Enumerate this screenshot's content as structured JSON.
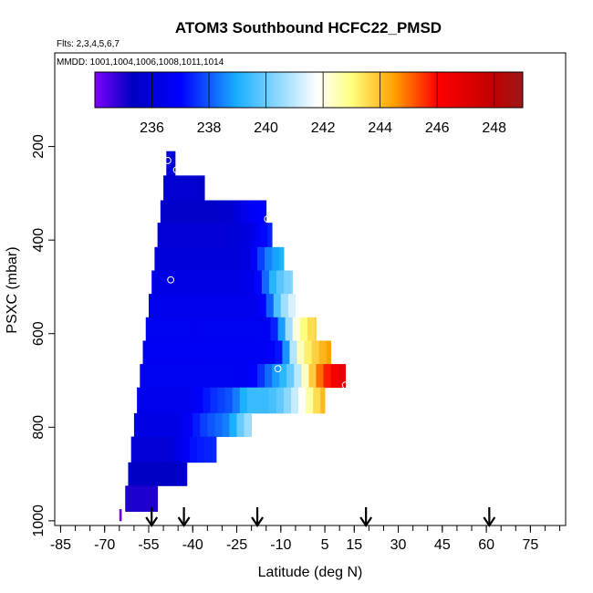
{
  "chart_data": {
    "type": "heatmap",
    "title": "ATOM3 Southbound HCFC22_PMSD",
    "flights_note": "Flts: 2,3,4,5,6,7",
    "dates_note": "MMDD: 1001,1004,1006,1008,1011,1014",
    "xlabel": "Latitude (deg N)",
    "ylabel": "PSXC (mbar)",
    "xlim": [
      -87,
      87
    ],
    "ylim": [
      1010,
      0
    ],
    "x_ticks": [
      -85,
      -70,
      -55,
      -40,
      -25,
      -10,
      5,
      15,
      30,
      45,
      60,
      75
    ],
    "x_minor_step": 5,
    "y_ticks": [
      200,
      400,
      600,
      800,
      1000
    ],
    "colorbar": {
      "min": 234,
      "max": 249,
      "ticks": [
        236,
        238,
        240,
        242,
        244,
        246,
        248
      ],
      "segment_edges": [
        236,
        238,
        240,
        242,
        244,
        246,
        248
      ],
      "colors": [
        "#7f00ff",
        "#0000c0",
        "#0000ff",
        "#1ab0ff",
        "#ffffff",
        "#ffff80",
        "#ffa000",
        "#ff0000",
        "#c00000",
        "#9c1a1a"
      ],
      "color_stops": [
        234,
        235.3,
        237,
        239,
        241.8,
        243,
        244.5,
        246,
        248,
        249
      ]
    },
    "profile_bands": [
      {
        "pmin": 210,
        "pmax": 262,
        "lat_min": -49,
        "lat_max": -46,
        "value": 235.6
      },
      {
        "pmin": 262,
        "pmax": 315,
        "lat_min": -50,
        "lat_max": -36,
        "value": 235.5
      },
      {
        "pmin": 315,
        "pmax": 363,
        "lat_min": -51,
        "lat_max": -15,
        "value": 235.6
      },
      {
        "pmin": 363,
        "pmax": 415,
        "lat_min": -52,
        "lat_max": -13,
        "value": 235.9
      },
      {
        "pmin": 415,
        "pmax": 465,
        "lat_min": -53,
        "lat_max": -9,
        "value": 236.0
      },
      {
        "pmin": 465,
        "pmax": 515,
        "lat_min": -54,
        "lat_max": -6,
        "value": 236.3
      },
      {
        "pmin": 515,
        "pmax": 565,
        "lat_min": -55,
        "lat_max": -3,
        "value": 236.5
      },
      {
        "pmin": 565,
        "pmax": 615,
        "lat_min": -56,
        "lat_max": 2,
        "value": 236.6
      },
      {
        "pmin": 615,
        "pmax": 665,
        "lat_min": -57,
        "lat_max": 7,
        "value": 236.7
      },
      {
        "pmin": 665,
        "pmax": 715,
        "lat_min": -58,
        "lat_max": 12,
        "value": 236.6
      },
      {
        "pmin": 715,
        "pmax": 770,
        "lat_min": -59,
        "lat_max": 5,
        "value": 236.5
      },
      {
        "pmin": 770,
        "pmax": 820,
        "lat_min": -60,
        "lat_max": -20,
        "value": 236.3
      },
      {
        "pmin": 820,
        "pmax": 875,
        "lat_min": -61,
        "lat_max": -32,
        "value": 235.9
      },
      {
        "pmin": 875,
        "pmax": 925,
        "lat_min": -62,
        "lat_max": -42,
        "value": 235.4
      },
      {
        "pmin": 925,
        "pmax": 980,
        "lat_min": -63,
        "lat_max": -52,
        "value": 235.0
      },
      {
        "pmin": 975,
        "pmax": 1000,
        "lat_min": -65,
        "lat_max": -64.3,
        "value": 234.2
      }
    ],
    "gradient_points": [
      {
        "p": 235,
        "lat": -45,
        "value": 236.0
      },
      {
        "p": 330,
        "lat": -15,
        "value": 236.8
      },
      {
        "p": 340,
        "lat": -12,
        "value": 237.6
      },
      {
        "p": 440,
        "lat": -9,
        "value": 238.8
      },
      {
        "p": 440,
        "lat": -6,
        "value": 239.6
      },
      {
        "p": 490,
        "lat": -6,
        "value": 240.2
      },
      {
        "p": 490,
        "lat": -3,
        "value": 241.6
      },
      {
        "p": 540,
        "lat": -3,
        "value": 242.0
      },
      {
        "p": 540,
        "lat": 2,
        "value": 243.8
      },
      {
        "p": 590,
        "lat": 2,
        "value": 244.4
      },
      {
        "p": 590,
        "lat": 7,
        "value": 244.8
      },
      {
        "p": 640,
        "lat": 2,
        "value": 243.5
      },
      {
        "p": 640,
        "lat": 7,
        "value": 245.2
      },
      {
        "p": 690,
        "lat": 7,
        "value": 247.0
      },
      {
        "p": 690,
        "lat": 12,
        "value": 248.5
      },
      {
        "p": 740,
        "lat": -10,
        "value": 239.8
      },
      {
        "p": 740,
        "lat": -3,
        "value": 242.5
      },
      {
        "p": 740,
        "lat": 5,
        "value": 245.0
      },
      {
        "p": 795,
        "lat": -30,
        "value": 238.5
      },
      {
        "p": 795,
        "lat": -20,
        "value": 241.5
      },
      {
        "p": 845,
        "lat": -35,
        "value": 237.5
      }
    ],
    "markers": [
      {
        "lat": -48.5,
        "p": 230
      },
      {
        "lat": -45.5,
        "p": 250
      },
      {
        "lat": -14.5,
        "p": 355
      },
      {
        "lat": -47.5,
        "p": 485
      },
      {
        "lat": -11,
        "p": 675
      },
      {
        "lat": 12,
        "p": 710
      }
    ],
    "arrows_lat": [
      -54,
      -43,
      -18,
      19,
      61
    ]
  }
}
